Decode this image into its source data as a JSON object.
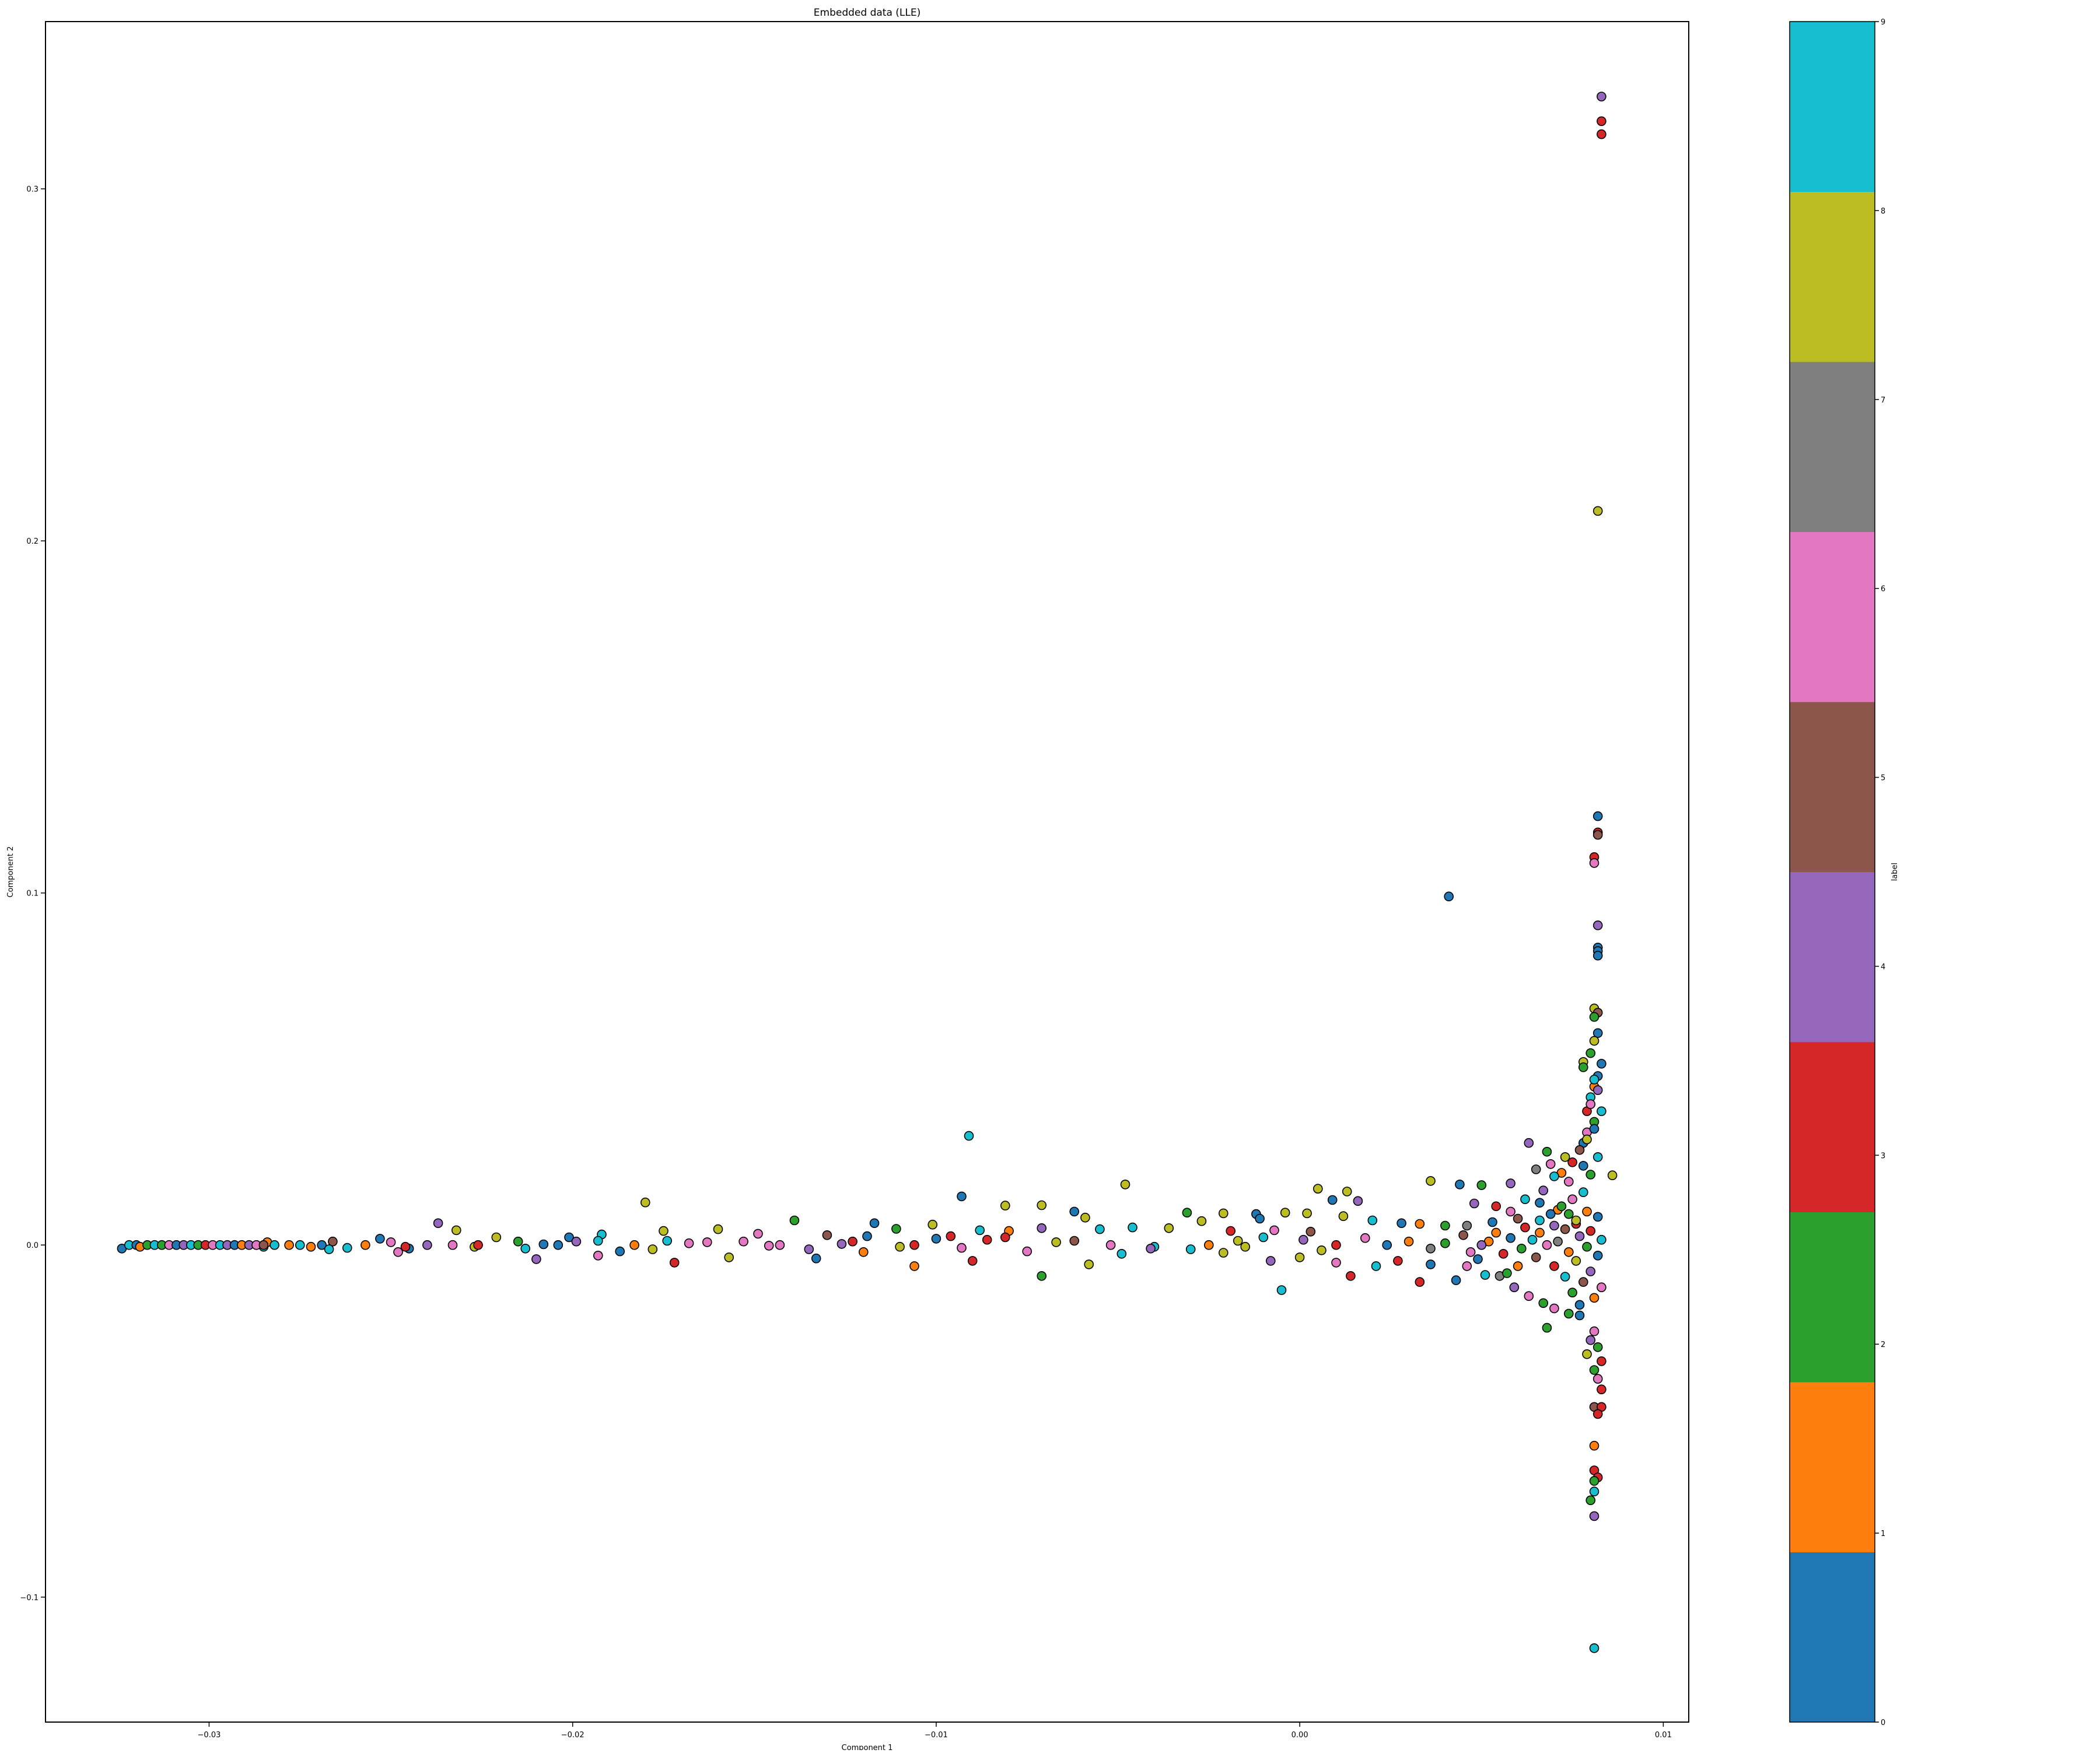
{
  "chart_data": {
    "type": "scatter",
    "title": "Embedded data (LLE)",
    "xlabel": "Component 1",
    "ylabel": "Component 2",
    "xlim": [
      -0.0345,
      0.0107
    ],
    "ylim": [
      -0.1355,
      0.3475
    ],
    "x_ticks": [
      -0.03,
      -0.02,
      -0.01,
      0.0,
      0.01
    ],
    "x_tick_labels": [
      "−0.03",
      "−0.02",
      "−0.01",
      "0.00",
      "0.01"
    ],
    "y_ticks": [
      -0.1,
      0.0,
      0.1,
      0.2,
      0.3
    ],
    "y_tick_labels": [
      "−0.1",
      "0.0",
      "0.1",
      "0.2",
      "0.3"
    ],
    "grid": false,
    "point_color_map": "tab10",
    "point_edge_color": "#000000",
    "colorbar": {
      "label": "label",
      "range": [
        0,
        9
      ],
      "ticks": [
        0,
        1,
        2,
        3,
        4,
        5,
        6,
        7,
        8,
        9
      ],
      "tick_labels": [
        "0",
        "1",
        "2",
        "3",
        "4",
        "5",
        "6",
        "7",
        "8",
        "9"
      ],
      "colors": [
        "#1f77b4",
        "#ff7f0e",
        "#2ca02c",
        "#d62728",
        "#9467bd",
        "#8c564b",
        "#e377c2",
        "#7f7f7f",
        "#bcbd22",
        "#17becf"
      ]
    },
    "points": [
      [
        0.0083,
        0.3262,
        4
      ],
      [
        0.0083,
        0.3192,
        3
      ],
      [
        0.0083,
        0.3155,
        3
      ],
      [
        0.0082,
        0.2085,
        8
      ],
      [
        0.0082,
        0.1218,
        0
      ],
      [
        0.0082,
        0.1172,
        3
      ],
      [
        0.0082,
        0.1165,
        5
      ],
      [
        0.0081,
        0.1102,
        3
      ],
      [
        0.0081,
        0.1085,
        6
      ],
      [
        0.0041,
        0.099,
        0
      ],
      [
        0.0082,
        0.0908,
        4
      ],
      [
        0.0082,
        0.0845,
        0
      ],
      [
        0.0082,
        0.0835,
        0
      ],
      [
        0.0082,
        0.0822,
        0
      ],
      [
        0.0081,
        0.0672,
        8
      ],
      [
        0.0082,
        0.066,
        5
      ],
      [
        0.0081,
        0.0648,
        2
      ],
      [
        0.0082,
        0.0602,
        0
      ],
      [
        0.0081,
        0.058,
        8
      ],
      [
        0.008,
        0.0545,
        2
      ],
      [
        0.0078,
        0.052,
        8
      ],
      [
        0.0078,
        0.0505,
        2
      ],
      [
        0.0082,
        0.048,
        0
      ],
      [
        0.0081,
        0.045,
        1
      ],
      [
        0.008,
        0.042,
        9
      ],
      [
        0.0079,
        0.038,
        3
      ],
      [
        0.0081,
        0.035,
        2
      ],
      [
        0.0079,
        0.032,
        6
      ],
      [
        0.0078,
        0.029,
        0
      ],
      [
        0.0077,
        0.027,
        5
      ],
      [
        -0.0091,
        0.031,
        9
      ],
      [
        0.0063,
        0.029,
        4
      ],
      [
        0.0068,
        0.0265,
        2
      ],
      [
        0.0073,
        0.025,
        8
      ],
      [
        0.0075,
        0.0235,
        3
      ],
      [
        0.0069,
        0.023,
        6
      ],
      [
        0.0065,
        0.0215,
        7
      ],
      [
        0.0078,
        0.0225,
        0
      ],
      [
        0.0086,
        0.0198,
        8
      ],
      [
        0.0072,
        0.0205,
        1
      ],
      [
        0.007,
        0.0195,
        9
      ],
      [
        0.0058,
        0.0175,
        4
      ],
      [
        0.005,
        0.017,
        2
      ],
      [
        0.0044,
        0.0172,
        0
      ],
      [
        0.0036,
        0.0182,
        8
      ],
      [
        -0.0048,
        0.0172,
        8
      ],
      [
        0.0013,
        0.0152,
        8
      ],
      [
        0.0005,
        0.016,
        8
      ],
      [
        0.0009,
        0.0128,
        0
      ],
      [
        0.0016,
        0.0125,
        4
      ],
      [
        -0.0093,
        0.0138,
        0
      ],
      [
        -0.0081,
        0.0112,
        8
      ],
      [
        -0.0071,
        0.0113,
        8
      ],
      [
        -0.018,
        0.0121,
        8
      ],
      [
        0.0062,
        0.013,
        9
      ],
      [
        0.0066,
        0.012,
        0
      ],
      [
        0.0054,
        0.011,
        3
      ],
      [
        0.0048,
        0.0118,
        4
      ],
      [
        0.0058,
        0.0095,
        6
      ],
      [
        0.0071,
        0.01,
        1
      ],
      [
        0.0074,
        0.0088,
        2
      ],
      [
        0.006,
        0.0075,
        5
      ],
      [
        0.0066,
        0.007,
        9
      ],
      [
        0.0053,
        0.0065,
        0
      ],
      [
        0.0046,
        0.0055,
        7
      ],
      [
        0.007,
        0.0055,
        4
      ],
      [
        0.0076,
        0.006,
        3
      ],
      [
        -0.0062,
        0.0095,
        0
      ],
      [
        -0.0059,
        0.0078,
        8
      ],
      [
        -0.0031,
        0.0092,
        2
      ],
      [
        -0.0027,
        0.0068,
        8
      ],
      [
        -0.0021,
        0.009,
        8
      ],
      [
        -0.0012,
        0.0088,
        0
      ],
      [
        -0.0011,
        0.0075,
        0
      ],
      [
        -0.0004,
        0.0092,
        8
      ],
      [
        0.0002,
        0.009,
        8
      ],
      [
        0.0012,
        0.0082,
        8
      ],
      [
        0.002,
        0.007,
        9
      ],
      [
        0.0028,
        0.0062,
        0
      ],
      [
        0.0033,
        0.006,
        1
      ],
      [
        0.004,
        0.0055,
        2
      ],
      [
        -0.0117,
        0.0062,
        0
      ],
      [
        -0.0101,
        0.0058,
        8
      ],
      [
        -0.0111,
        0.0046,
        2
      ],
      [
        -0.0088,
        0.0042,
        9
      ],
      [
        -0.008,
        0.004,
        1
      ],
      [
        -0.0071,
        0.0048,
        4
      ],
      [
        -0.0055,
        0.0045,
        9
      ],
      [
        -0.0046,
        0.005,
        9
      ],
      [
        -0.0036,
        0.0048,
        8
      ],
      [
        -0.0019,
        0.004,
        3
      ],
      [
        -0.0007,
        0.0042,
        6
      ],
      [
        0.0003,
        0.0038,
        5
      ],
      [
        -0.0139,
        0.007,
        2
      ],
      [
        -0.016,
        0.0045,
        8
      ],
      [
        -0.0149,
        0.0032,
        6
      ],
      [
        -0.013,
        0.0028,
        5
      ],
      [
        -0.0119,
        0.0025,
        0
      ],
      [
        -0.0096,
        0.0025,
        3
      ],
      [
        -0.0175,
        0.004,
        8
      ],
      [
        -0.0192,
        0.003,
        9
      ],
      [
        -0.0201,
        0.0022,
        0
      ],
      [
        -0.0221,
        0.0022,
        8
      ],
      [
        -0.0232,
        0.0042,
        8
      ],
      [
        -0.0237,
        0.0062,
        4
      ],
      [
        -0.0253,
        0.0018,
        0
      ],
      [
        -0.0266,
        0.001,
        5
      ],
      [
        -0.0284,
        0.0008,
        1
      ],
      [
        -0.0174,
        0.0012,
        9
      ],
      [
        -0.0168,
        0.0005,
        6
      ],
      [
        -0.0146,
        -0.0002,
        6
      ],
      [
        -0.0135,
        -0.0012,
        4
      ],
      [
        -0.0126,
        0.0003,
        4
      ],
      [
        -0.011,
        -0.0005,
        8
      ],
      [
        -0.01,
        0.0018,
        0
      ],
      [
        -0.0093,
        -0.0008,
        6
      ],
      [
        -0.0086,
        0.0015,
        3
      ],
      [
        -0.0075,
        -0.0018,
        6
      ],
      [
        -0.0067,
        0.0008,
        8
      ],
      [
        -0.0058,
        -0.0055,
        8
      ],
      [
        -0.0049,
        -0.0025,
        9
      ],
      [
        -0.004,
        -0.0005,
        9
      ],
      [
        -0.003,
        -0.0012,
        9
      ],
      [
        -0.0021,
        -0.0022,
        8
      ],
      [
        -0.0015,
        -0.0005,
        8
      ],
      [
        -0.0008,
        -0.0045,
        4
      ],
      [
        0.0,
        -0.0035,
        8
      ],
      [
        0.0006,
        -0.0015,
        8
      ],
      [
        0.001,
        -0.005,
        6
      ],
      [
        0.0014,
        -0.0088,
        3
      ],
      [
        0.0021,
        -0.006,
        9
      ],
      [
        0.0027,
        -0.0045,
        3
      ],
      [
        0.0033,
        -0.0105,
        3
      ],
      [
        0.0036,
        -0.0055,
        0
      ],
      [
        0.0043,
        -0.01,
        0
      ],
      [
        0.0049,
        -0.004,
        0
      ],
      [
        -0.0005,
        -0.0128,
        9
      ],
      [
        -0.0071,
        -0.0088,
        2
      ],
      [
        -0.009,
        -0.0045,
        3
      ],
      [
        -0.0106,
        -0.006,
        1
      ],
      [
        -0.0133,
        -0.0038,
        0
      ],
      [
        -0.0157,
        -0.0035,
        8
      ],
      [
        -0.0172,
        -0.005,
        3
      ],
      [
        -0.0193,
        -0.003,
        6
      ],
      [
        -0.021,
        -0.004,
        4
      ],
      [
        -0.0227,
        -0.0005,
        8
      ],
      [
        -0.0248,
        -0.002,
        6
      ],
      [
        -0.0262,
        -0.0008,
        9
      ],
      [
        -0.0285,
        -0.0005,
        9
      ],
      [
        -0.0245,
        -0.001,
        0
      ],
      [
        -0.0208,
        0.0002,
        0
      ],
      [
        -0.0187,
        -0.0018,
        0
      ],
      [
        0.0055,
        -0.0088,
        7
      ],
      [
        0.0059,
        -0.012,
        4
      ],
      [
        0.0063,
        -0.0145,
        6
      ],
      [
        0.0067,
        -0.0165,
        2
      ],
      [
        0.007,
        -0.018,
        6
      ],
      [
        0.0074,
        -0.0195,
        2
      ],
      [
        0.0077,
        -0.02,
        0
      ],
      [
        0.0068,
        -0.0235,
        2
      ],
      [
        0.0081,
        -0.0245,
        6
      ],
      [
        0.008,
        -0.027,
        4
      ],
      [
        0.0082,
        -0.029,
        2
      ],
      [
        0.0079,
        -0.031,
        8
      ],
      [
        0.0083,
        -0.033,
        3
      ],
      [
        0.0081,
        -0.0355,
        2
      ],
      [
        0.0082,
        -0.038,
        6
      ],
      [
        0.0083,
        -0.041,
        3
      ],
      [
        0.0081,
        -0.046,
        5
      ],
      [
        0.0083,
        -0.046,
        3
      ],
      [
        0.0082,
        -0.048,
        3
      ],
      [
        0.0081,
        -0.057,
        1
      ],
      [
        0.0081,
        -0.064,
        3
      ],
      [
        0.0082,
        -0.066,
        3
      ],
      [
        0.0081,
        -0.067,
        2
      ],
      [
        0.0081,
        -0.07,
        9
      ],
      [
        0.008,
        -0.0725,
        2
      ],
      [
        0.0081,
        -0.077,
        4
      ],
      [
        0.0081,
        -0.1145,
        9
      ],
      [
        0.0078,
        0.015,
        9
      ],
      [
        0.0075,
        0.013,
        6
      ],
      [
        0.0072,
        0.011,
        2
      ],
      [
        0.0079,
        0.0095,
        1
      ],
      [
        0.0082,
        0.008,
        0
      ],
      [
        0.0076,
        0.007,
        8
      ],
      [
        0.0073,
        0.0045,
        5
      ],
      [
        0.008,
        0.004,
        3
      ],
      [
        0.0077,
        0.0025,
        4
      ],
      [
        0.0083,
        0.0015,
        9
      ],
      [
        0.0071,
        0.001,
        7
      ],
      [
        0.0068,
        0.0,
        6
      ],
      [
        0.0079,
        -0.0005,
        2
      ],
      [
        0.0074,
        -0.002,
        1
      ],
      [
        0.0082,
        -0.003,
        0
      ],
      [
        0.0076,
        -0.0045,
        8
      ],
      [
        0.007,
        -0.006,
        3
      ],
      [
        0.008,
        -0.0075,
        4
      ],
      [
        0.0073,
        -0.009,
        9
      ],
      [
        0.0078,
        -0.0105,
        5
      ],
      [
        0.0083,
        -0.012,
        6
      ],
      [
        0.0075,
        -0.0135,
        2
      ],
      [
        0.0081,
        -0.015,
        1
      ],
      [
        0.0077,
        -0.017,
        0
      ],
      [
        0.0066,
        0.0035,
        1
      ],
      [
        0.0064,
        0.0015,
        9
      ],
      [
        0.0061,
        -0.001,
        2
      ],
      [
        0.0058,
        0.002,
        0
      ],
      [
        0.0056,
        -0.0025,
        3
      ],
      [
        0.0052,
        0.001,
        1
      ],
      [
        0.0047,
        -0.002,
        6
      ],
      [
        0.0045,
        0.0028,
        5
      ],
      [
        0.0069,
        0.0088,
        0
      ],
      [
        0.0067,
        0.0155,
        4
      ],
      [
        0.0074,
        0.018,
        6
      ],
      [
        0.008,
        0.02,
        2
      ],
      [
        0.0082,
        0.025,
        9
      ],
      [
        0.0079,
        0.03,
        8
      ],
      [
        0.0081,
        0.033,
        0
      ],
      [
        0.0083,
        0.038,
        9
      ],
      [
        0.008,
        0.04,
        6
      ],
      [
        0.0082,
        0.044,
        4
      ],
      [
        0.0081,
        0.047,
        9
      ],
      [
        0.0083,
        0.0515,
        0
      ],
      [
        -0.0324,
        -0.001,
        0
      ],
      [
        -0.0322,
        0.0,
        9
      ],
      [
        -0.032,
        0.0,
        0
      ],
      [
        -0.0319,
        -0.0005,
        1
      ],
      [
        -0.0317,
        0.0,
        2
      ],
      [
        -0.0315,
        0.0,
        9
      ],
      [
        -0.0313,
        0.0,
        2
      ],
      [
        -0.0311,
        0.0,
        6
      ],
      [
        -0.0309,
        0.0,
        0
      ],
      [
        -0.0307,
        0.0,
        4
      ],
      [
        -0.0305,
        0.0,
        9
      ],
      [
        -0.0303,
        0.0,
        2
      ],
      [
        -0.0301,
        0.0,
        3
      ],
      [
        -0.0299,
        0.0,
        6
      ],
      [
        -0.0297,
        0.0,
        9
      ],
      [
        -0.0295,
        0.0,
        4
      ],
      [
        -0.0293,
        0.0,
        0
      ],
      [
        -0.0291,
        0.0,
        1
      ],
      [
        -0.0289,
        0.0,
        4
      ],
      [
        -0.0287,
        0.0,
        6
      ],
      [
        -0.0285,
        0.0,
        5
      ],
      [
        -0.0282,
        0.0,
        9
      ],
      [
        -0.0278,
        0.0,
        1
      ],
      [
        -0.0275,
        0.0,
        9
      ],
      [
        -0.0272,
        -0.0005,
        1
      ],
      [
        -0.0269,
        0.0,
        0
      ],
      [
        -0.0267,
        -0.0012,
        9
      ],
      [
        -0.0257,
        0.0,
        1
      ],
      [
        -0.025,
        0.0008,
        6
      ],
      [
        -0.0246,
        -0.0005,
        3
      ],
      [
        -0.024,
        0.0,
        4
      ],
      [
        -0.0233,
        0.0,
        6
      ],
      [
        -0.0226,
        0.0,
        3
      ],
      [
        -0.0215,
        0.001,
        2
      ],
      [
        -0.0213,
        -0.001,
        9
      ],
      [
        -0.0204,
        0.0,
        0
      ],
      [
        -0.0199,
        0.001,
        4
      ],
      [
        -0.0193,
        0.0012,
        9
      ],
      [
        -0.0183,
        0.0,
        1
      ],
      [
        -0.0178,
        -0.0012,
        8
      ],
      [
        -0.0163,
        0.0008,
        6
      ],
      [
        -0.0153,
        0.001,
        6
      ],
      [
        -0.0143,
        0.0,
        6
      ],
      [
        -0.0123,
        0.001,
        3
      ],
      [
        -0.012,
        -0.002,
        1
      ],
      [
        -0.0106,
        0.0,
        3
      ],
      [
        -0.0081,
        0.0022,
        3
      ],
      [
        -0.0062,
        0.0012,
        5
      ],
      [
        -0.0052,
        0.0,
        6
      ],
      [
        -0.0041,
        -0.001,
        4
      ],
      [
        -0.0025,
        0.0,
        1
      ],
      [
        -0.0017,
        0.0012,
        8
      ],
      [
        -0.001,
        0.0022,
        9
      ],
      [
        0.0001,
        0.0015,
        4
      ],
      [
        0.001,
        0.0,
        3
      ],
      [
        0.0018,
        0.002,
        6
      ],
      [
        0.0024,
        0.0,
        0
      ],
      [
        0.003,
        0.001,
        1
      ],
      [
        0.0036,
        -0.001,
        7
      ],
      [
        0.004,
        0.0005,
        2
      ],
      [
        0.005,
        0.0,
        4
      ],
      [
        0.0054,
        0.0035,
        1
      ],
      [
        0.0062,
        0.005,
        3
      ],
      [
        0.0065,
        -0.0035,
        5
      ],
      [
        0.006,
        -0.006,
        1
      ],
      [
        0.0057,
        -0.008,
        2
      ],
      [
        0.0051,
        -0.0085,
        9
      ],
      [
        0.0046,
        -0.006,
        6
      ]
    ]
  }
}
